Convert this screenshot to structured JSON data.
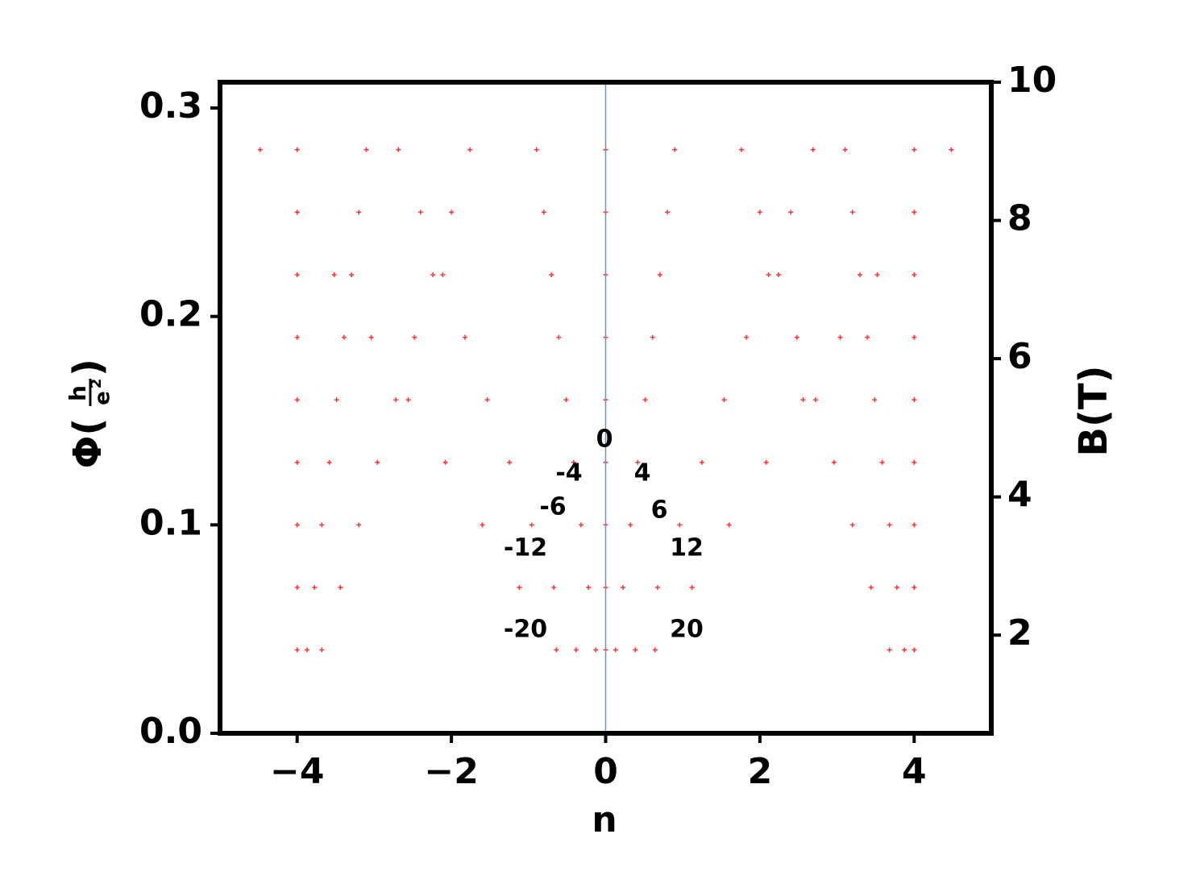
{
  "chart_data": {
    "type": "scatter",
    "xlabel": "n",
    "ylabel": {
      "symbol": "Φ(",
      "numerator": "h",
      "denominator": "e",
      "exponent": "2",
      "close": ")"
    },
    "y2label": "B(T)",
    "annotations": [
      "0",
      "-4",
      "4",
      "-6",
      "6",
      "-12",
      "12",
      "-20",
      "20"
    ],
    "color": "#ff3333",
    "xlim": [
      -5,
      5
    ],
    "ylim": [
      0,
      0.3124
    ],
    "y2lim": [
      0.58,
      10
    ],
    "xticks": [
      {
        "value": -4,
        "label": "−4"
      },
      {
        "value": -2,
        "label": "−2"
      },
      0,
      2,
      4
    ],
    "yticks": [
      {
        "value": 0,
        "label": "0.0"
      },
      0.1,
      0.2,
      0.3
    ],
    "y2ticks": [
      2,
      4,
      6,
      8,
      10
    ],
    "x": [
      0,
      0,
      0,
      0,
      0,
      0,
      0,
      0,
      0,
      0.128,
      0.224,
      0.32,
      0.416,
      0.512,
      0.608,
      0.704,
      0.8,
      0.896,
      -0.128,
      -0.224,
      -0.32,
      -0.416,
      -0.512,
      -0.608,
      -0.704,
      -0.8,
      -0.896,
      0.384,
      0.672,
      0.96,
      1.248,
      1.536,
      1.824,
      2.112,
      2.4,
      2.688,
      -0.384,
      -0.672,
      -0.96,
      -1.248,
      -1.536,
      -1.824,
      -2.112,
      -2.4,
      -2.688,
      0.64,
      1.12,
      1.6,
      2.08,
      2.56,
      3.04,
      3.52,
      4,
      4.48,
      -0.64,
      -1.12,
      -1.6,
      -2.08,
      -2.56,
      -3.04,
      -3.52,
      -4,
      -4.48,
      3.68,
      3.44,
      3.2,
      2.96,
      2.72,
      2.48,
      2.24,
      2,
      1.76,
      -3.68,
      -3.44,
      -3.2,
      -2.96,
      -2.72,
      -2.48,
      -2.24,
      -2,
      -1.76,
      3.872,
      3.776,
      3.68,
      3.584,
      3.488,
      3.392,
      3.296,
      3.2,
      3.104,
      -3.872,
      -3.776,
      -3.68,
      -3.584,
      -3.488,
      -3.392,
      -3.296,
      -3.2,
      -3.104,
      4,
      4,
      4,
      4,
      4,
      4,
      4,
      4,
      4,
      -4,
      -4,
      -4,
      -4,
      -4,
      -4,
      -4,
      -4,
      -4
    ],
    "y": [
      0.04,
      0.07,
      0.1,
      0.13,
      0.16,
      0.19,
      0.22,
      0.25,
      0.28,
      0.04,
      0.07,
      0.1,
      0.13,
      0.16,
      0.19,
      0.22,
      0.25,
      0.28,
      0.04,
      0.07,
      0.1,
      0.13,
      0.16,
      0.19,
      0.22,
      0.25,
      0.28,
      0.04,
      0.07,
      0.1,
      0.13,
      0.16,
      0.19,
      0.22,
      0.25,
      0.28,
      0.04,
      0.07,
      0.1,
      0.13,
      0.16,
      0.19,
      0.22,
      0.25,
      0.28,
      0.04,
      0.07,
      0.1,
      0.13,
      0.16,
      0.19,
      0.22,
      0.25,
      0.28,
      0.04,
      0.07,
      0.1,
      0.13,
      0.16,
      0.19,
      0.22,
      0.25,
      0.28,
      0.04,
      0.07,
      0.1,
      0.13,
      0.16,
      0.19,
      0.22,
      0.25,
      0.28,
      0.04,
      0.07,
      0.1,
      0.13,
      0.16,
      0.19,
      0.22,
      0.25,
      0.28,
      0.04,
      0.07,
      0.1,
      0.13,
      0.16,
      0.19,
      0.22,
      0.25,
      0.28,
      0.04,
      0.07,
      0.1,
      0.13,
      0.16,
      0.19,
      0.22,
      0.25,
      0.28,
      0.04,
      0.07,
      0.1,
      0.13,
      0.16,
      0.19,
      0.22,
      0.25,
      0.28,
      0.04,
      0.07,
      0.1,
      0.13,
      0.16,
      0.19,
      0.22,
      0.25,
      0.28
    ]
  }
}
